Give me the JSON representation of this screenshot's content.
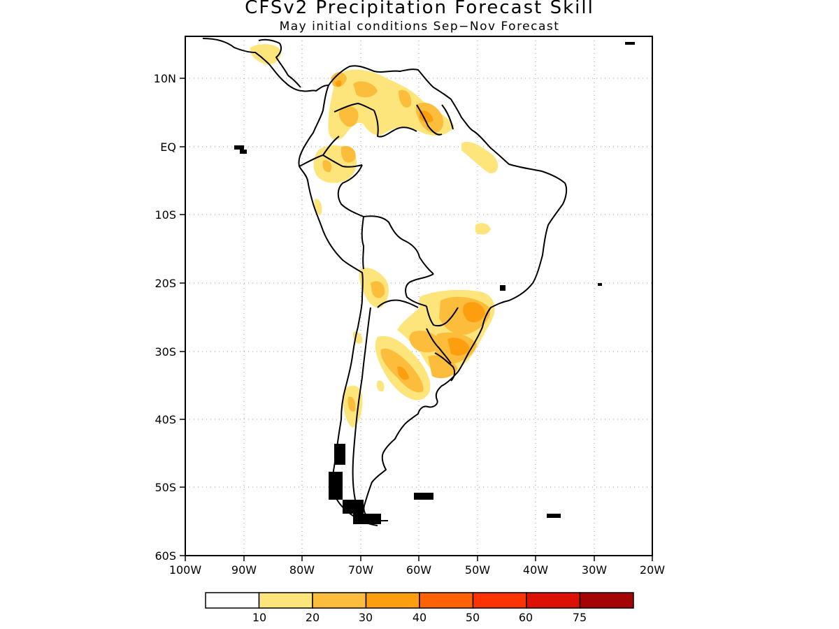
{
  "title": "CFSv2 Precipitation Forecast Skill",
  "subtitle": "May initial conditions  Sep−Nov Forecast",
  "lat_labels": [
    "10N",
    "EQ",
    "10S",
    "20S",
    "30S",
    "40S",
    "50S",
    "60S"
  ],
  "lon_labels": [
    "100W",
    "90W",
    "80W",
    "70W",
    "60W",
    "50W",
    "40W",
    "30W",
    "20W"
  ],
  "colorbar": {
    "colors": [
      "#ffffff",
      "#fde57c",
      "#fdbd3c",
      "#fd9e0e",
      "#fd6204",
      "#fd3304",
      "#dc1104",
      "#a40404"
    ],
    "labels": [
      "10",
      "20",
      "30",
      "40",
      "50",
      "60",
      "75"
    ]
  },
  "map": {
    "region": "South America",
    "lon_range": [
      -100,
      -20
    ],
    "lat_range": [
      -60,
      15
    ],
    "grid": "dotted",
    "variable": "precipitation forecast skill"
  }
}
